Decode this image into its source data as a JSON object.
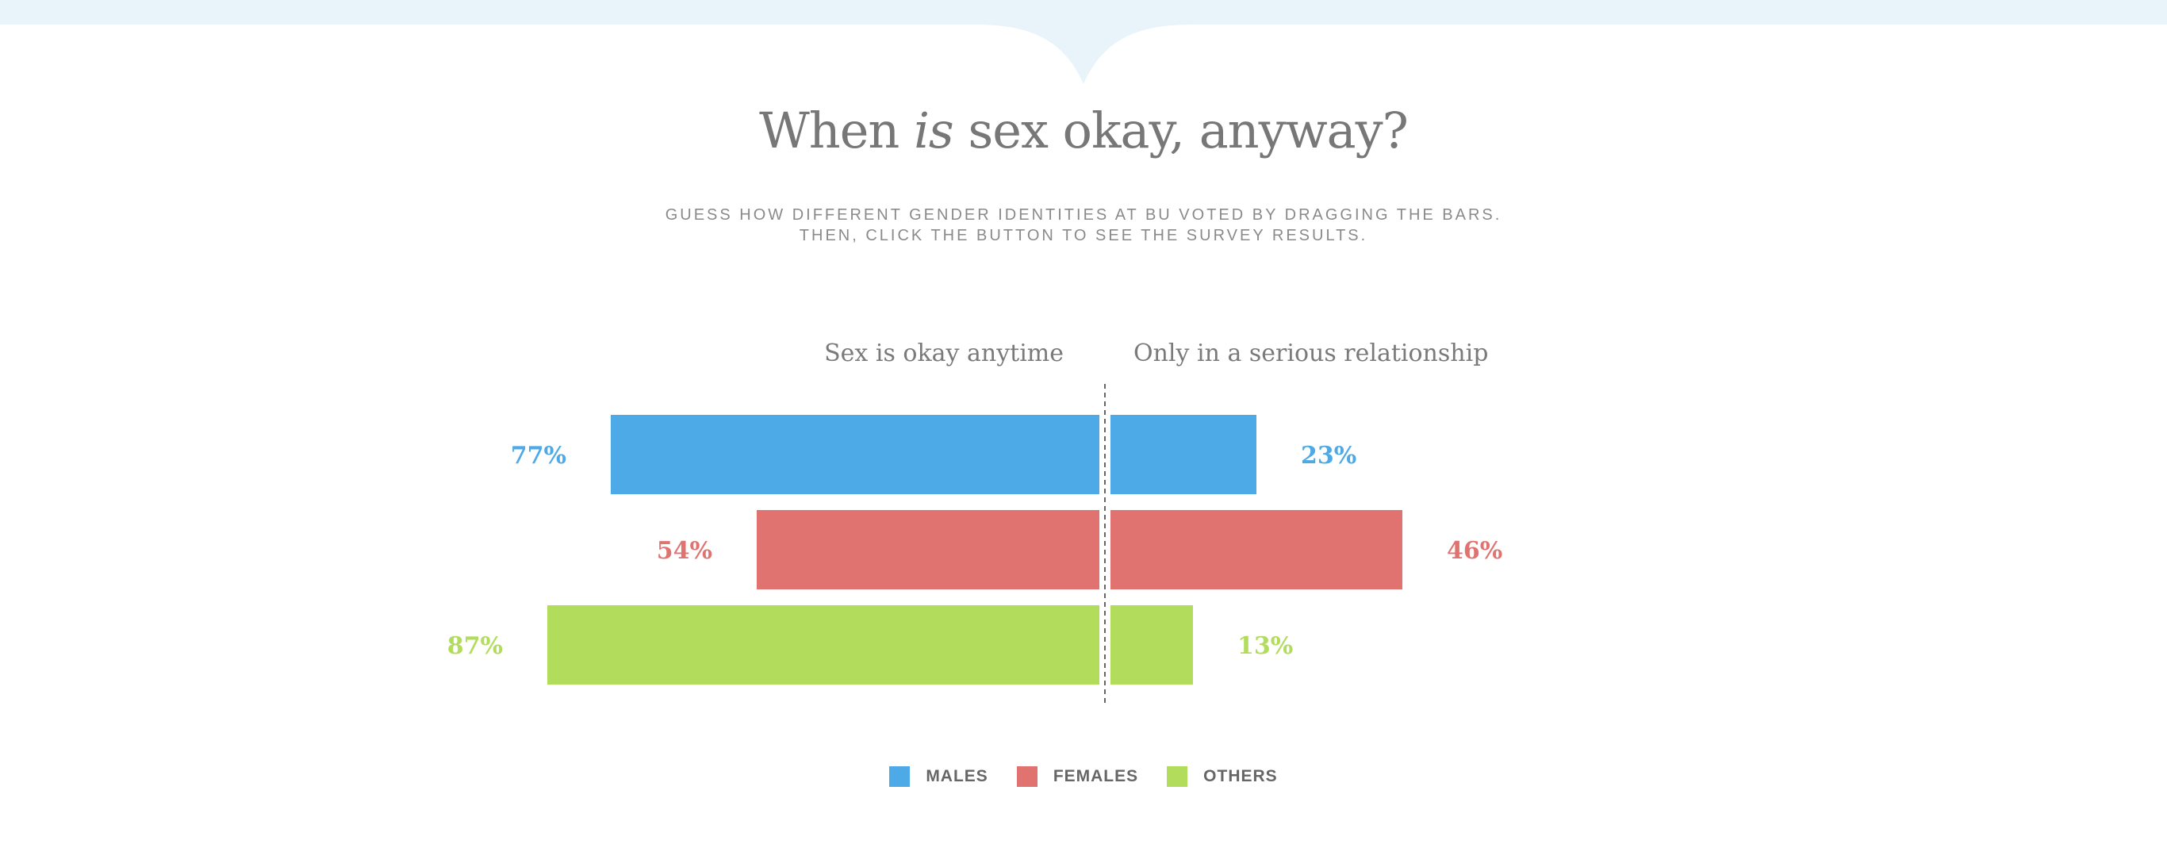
{
  "title": {
    "before": "When ",
    "emphasis": "is",
    "after": " sex okay, anyway?"
  },
  "subtitle": [
    "GUESS HOW DIFFERENT GENDER IDENTITIES AT BU VOTED BY DRAGGING THE BARS.",
    "THEN, CLICK THE BUTTON TO SEE THE SURVEY RESULTS."
  ],
  "chart_data": {
    "type": "bar",
    "orientation": "diverging-horizontal",
    "left_label": "Sex is okay anytime",
    "right_label": "Only in a serious relationship",
    "xlim": [
      0,
      100
    ],
    "categories": [
      "Males",
      "Females",
      "Others"
    ],
    "series": [
      {
        "name": "Sex is okay anytime",
        "values": [
          77,
          54,
          87
        ]
      },
      {
        "name": "Only in a serious relationship",
        "values": [
          23,
          46,
          13
        ]
      }
    ],
    "value_labels_left": [
      "77%",
      "54%",
      "87%"
    ],
    "value_labels_right": [
      "23%",
      "46%",
      "13%"
    ],
    "colors": [
      "#4eaae6",
      "#e07370",
      "#b1dc5c"
    ],
    "legend": {
      "placement": "bottom",
      "items": [
        {
          "label": "MALES",
          "color": "#4eaae6"
        },
        {
          "label": "FEMALES",
          "color": "#e07370"
        },
        {
          "label": "OTHERS",
          "color": "#b1dc5c"
        }
      ]
    }
  }
}
